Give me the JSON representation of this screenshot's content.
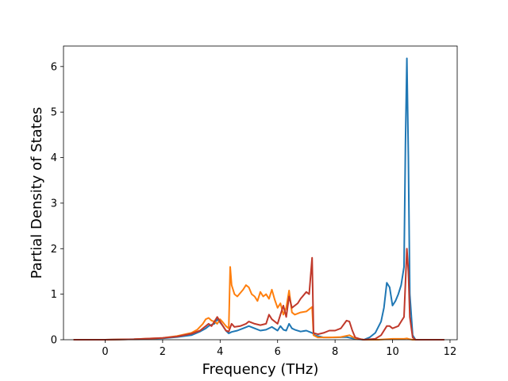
{
  "chart_data": {
    "type": "line",
    "xlabel": "Frequency (THz)",
    "ylabel": "Partial Density of States",
    "xlim": [
      -1.45,
      12.25
    ],
    "ylim": [
      0,
      6.45
    ],
    "x_ticks": [
      0,
      2,
      4,
      6,
      8,
      10,
      12
    ],
    "y_ticks": [
      0,
      1,
      2,
      3,
      4,
      5,
      6
    ],
    "x_tick_labels": [
      "0",
      "2",
      "4",
      "6",
      "8",
      "10",
      "12"
    ],
    "y_tick_labels": [
      "0",
      "1",
      "2",
      "3",
      "4",
      "5",
      "6"
    ],
    "grid": false,
    "legend": "none",
    "series": [
      {
        "color": "#1f77b4",
        "points": [
          [
            -1.1,
            0
          ],
          [
            0,
            0
          ],
          [
            1,
            0.01
          ],
          [
            2,
            0.03
          ],
          [
            2.5,
            0.06
          ],
          [
            3,
            0.1
          ],
          [
            3.3,
            0.18
          ],
          [
            3.5,
            0.25
          ],
          [
            3.6,
            0.3
          ],
          [
            3.7,
            0.33
          ],
          [
            3.8,
            0.35
          ],
          [
            3.9,
            0.45
          ],
          [
            4.0,
            0.38
          ],
          [
            4.1,
            0.3
          ],
          [
            4.2,
            0.2
          ],
          [
            4.3,
            0.14
          ],
          [
            4.4,
            0.17
          ],
          [
            4.6,
            0.2
          ],
          [
            4.8,
            0.25
          ],
          [
            5.0,
            0.3
          ],
          [
            5.2,
            0.25
          ],
          [
            5.4,
            0.2
          ],
          [
            5.6,
            0.22
          ],
          [
            5.8,
            0.28
          ],
          [
            6.0,
            0.2
          ],
          [
            6.1,
            0.3
          ],
          [
            6.2,
            0.22
          ],
          [
            6.3,
            0.2
          ],
          [
            6.4,
            0.35
          ],
          [
            6.5,
            0.25
          ],
          [
            6.6,
            0.22
          ],
          [
            6.8,
            0.18
          ],
          [
            7.0,
            0.2
          ],
          [
            7.2,
            0.15
          ],
          [
            7.3,
            0.1
          ],
          [
            7.4,
            0.08
          ],
          [
            7.6,
            0.05
          ],
          [
            8.0,
            0.05
          ],
          [
            8.4,
            0.06
          ],
          [
            8.6,
            0.03
          ],
          [
            8.8,
            0.01
          ],
          [
            9.0,
            0
          ],
          [
            9.2,
            0.05
          ],
          [
            9.4,
            0.15
          ],
          [
            9.6,
            0.4
          ],
          [
            9.7,
            0.7
          ],
          [
            9.8,
            1.25
          ],
          [
            9.9,
            1.15
          ],
          [
            10.0,
            0.75
          ],
          [
            10.1,
            0.85
          ],
          [
            10.2,
            1.0
          ],
          [
            10.3,
            1.2
          ],
          [
            10.4,
            1.6
          ],
          [
            10.45,
            4.3
          ],
          [
            10.5,
            6.18
          ],
          [
            10.55,
            4.0
          ],
          [
            10.6,
            1.0
          ],
          [
            10.7,
            0.1
          ],
          [
            10.8,
            0
          ],
          [
            11.8,
            0
          ]
        ]
      },
      {
        "color": "#ff7f0e",
        "points": [
          [
            -1.1,
            0
          ],
          [
            0,
            0
          ],
          [
            1,
            0.01
          ],
          [
            2,
            0.04
          ],
          [
            2.5,
            0.08
          ],
          [
            3,
            0.15
          ],
          [
            3.2,
            0.22
          ],
          [
            3.4,
            0.35
          ],
          [
            3.5,
            0.45
          ],
          [
            3.6,
            0.48
          ],
          [
            3.7,
            0.42
          ],
          [
            3.8,
            0.4
          ],
          [
            3.9,
            0.35
          ],
          [
            4.0,
            0.45
          ],
          [
            4.1,
            0.38
          ],
          [
            4.2,
            0.3
          ],
          [
            4.3,
            0.25
          ],
          [
            4.35,
            1.6
          ],
          [
            4.4,
            1.2
          ],
          [
            4.5,
            1.0
          ],
          [
            4.6,
            0.95
          ],
          [
            4.8,
            1.1
          ],
          [
            4.9,
            1.2
          ],
          [
            5.0,
            1.15
          ],
          [
            5.1,
            1.0
          ],
          [
            5.2,
            0.95
          ],
          [
            5.3,
            0.85
          ],
          [
            5.4,
            1.05
          ],
          [
            5.5,
            0.95
          ],
          [
            5.6,
            1.0
          ],
          [
            5.7,
            0.9
          ],
          [
            5.8,
            1.1
          ],
          [
            5.9,
            0.88
          ],
          [
            6.0,
            0.7
          ],
          [
            6.1,
            0.8
          ],
          [
            6.2,
            0.55
          ],
          [
            6.3,
            0.7
          ],
          [
            6.4,
            1.08
          ],
          [
            6.5,
            0.6
          ],
          [
            6.6,
            0.55
          ],
          [
            6.8,
            0.6
          ],
          [
            7.0,
            0.62
          ],
          [
            7.2,
            0.72
          ],
          [
            7.25,
            0.1
          ],
          [
            7.4,
            0.05
          ],
          [
            7.8,
            0.05
          ],
          [
            8.2,
            0.06
          ],
          [
            8.5,
            0.1
          ],
          [
            8.7,
            0.03
          ],
          [
            8.9,
            0.01
          ],
          [
            9.0,
            0
          ],
          [
            9.5,
            0
          ],
          [
            10.0,
            0.02
          ],
          [
            10.4,
            0.02
          ],
          [
            10.5,
            0.03
          ],
          [
            10.6,
            0.01
          ],
          [
            10.7,
            0
          ],
          [
            11.8,
            0
          ]
        ]
      },
      {
        "color": "#c0392b",
        "points": [
          [
            -1.1,
            0
          ],
          [
            0,
            0
          ],
          [
            1,
            0.01
          ],
          [
            2,
            0.04
          ],
          [
            2.5,
            0.07
          ],
          [
            3,
            0.13
          ],
          [
            3.3,
            0.2
          ],
          [
            3.5,
            0.3
          ],
          [
            3.6,
            0.35
          ],
          [
            3.7,
            0.3
          ],
          [
            3.8,
            0.4
          ],
          [
            3.9,
            0.5
          ],
          [
            4.0,
            0.4
          ],
          [
            4.1,
            0.3
          ],
          [
            4.2,
            0.2
          ],
          [
            4.3,
            0.18
          ],
          [
            4.4,
            0.35
          ],
          [
            4.5,
            0.28
          ],
          [
            4.7,
            0.3
          ],
          [
            4.9,
            0.35
          ],
          [
            5.0,
            0.4
          ],
          [
            5.2,
            0.35
          ],
          [
            5.4,
            0.32
          ],
          [
            5.6,
            0.35
          ],
          [
            5.7,
            0.55
          ],
          [
            5.8,
            0.45
          ],
          [
            6.0,
            0.35
          ],
          [
            6.1,
            0.55
          ],
          [
            6.2,
            0.75
          ],
          [
            6.3,
            0.5
          ],
          [
            6.4,
            0.95
          ],
          [
            6.5,
            0.7
          ],
          [
            6.6,
            0.75
          ],
          [
            6.7,
            0.8
          ],
          [
            6.8,
            0.9
          ],
          [
            7.0,
            1.05
          ],
          [
            7.1,
            1.0
          ],
          [
            7.2,
            1.8
          ],
          [
            7.25,
            0.15
          ],
          [
            7.4,
            0.12
          ],
          [
            7.6,
            0.15
          ],
          [
            7.8,
            0.2
          ],
          [
            8.0,
            0.2
          ],
          [
            8.2,
            0.25
          ],
          [
            8.4,
            0.42
          ],
          [
            8.5,
            0.4
          ],
          [
            8.6,
            0.2
          ],
          [
            8.7,
            0.05
          ],
          [
            8.9,
            0.01
          ],
          [
            9.0,
            0
          ],
          [
            9.4,
            0.02
          ],
          [
            9.6,
            0.1
          ],
          [
            9.8,
            0.3
          ],
          [
            9.9,
            0.3
          ],
          [
            10.0,
            0.25
          ],
          [
            10.2,
            0.3
          ],
          [
            10.4,
            0.5
          ],
          [
            10.5,
            2.0
          ],
          [
            10.55,
            1.5
          ],
          [
            10.6,
            0.5
          ],
          [
            10.7,
            0.05
          ],
          [
            10.8,
            0
          ],
          [
            11.8,
            0
          ]
        ]
      }
    ]
  }
}
